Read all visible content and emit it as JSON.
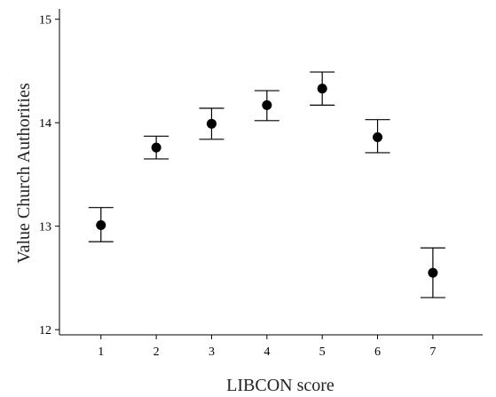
{
  "chart_data": {
    "type": "scatter",
    "title": "",
    "xlabel": "LIBCON score",
    "ylabel": "Value Church Authorities",
    "x_ticks": [
      "1",
      "2",
      "3",
      "4",
      "5",
      "6",
      "7"
    ],
    "y_ticks": [
      "12",
      "13",
      "14",
      "15"
    ],
    "xlim": [
      0.25,
      7.9
    ],
    "ylim": [
      11.95,
      15.1
    ],
    "grid": false,
    "series": [
      {
        "x": [
          1,
          2,
          3,
          4,
          5,
          6,
          7
        ],
        "y": [
          13.01,
          13.76,
          13.99,
          14.17,
          14.33,
          13.86,
          12.55
        ],
        "err_low": [
          12.85,
          13.65,
          13.84,
          14.02,
          14.17,
          13.71,
          12.31
        ],
        "err_high": [
          13.18,
          13.87,
          14.14,
          14.31,
          14.49,
          14.03,
          12.79
        ]
      }
    ],
    "colors": {
      "marker": "#000000",
      "axis": "#000000"
    }
  }
}
